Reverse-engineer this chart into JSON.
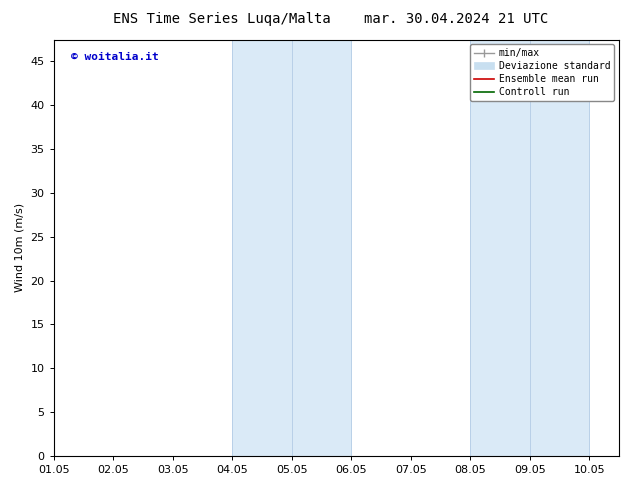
{
  "title": "ENS Time Series Luqa/Malta",
  "title_date": "mar. 30.04.2024 21 UTC",
  "ylabel": "Wind 10m (m/s)",
  "xlim_min": 0,
  "xlim_max": 9.5,
  "ylim_min": 0,
  "ylim_max": 47.5,
  "yticks": [
    0,
    5,
    10,
    15,
    20,
    25,
    30,
    35,
    40,
    45
  ],
  "xtick_labels": [
    "01.05",
    "02.05",
    "03.05",
    "04.05",
    "05.05",
    "06.05",
    "07.05",
    "08.05",
    "09.05",
    "10.05"
  ],
  "xtick_positions": [
    0,
    1,
    2,
    3,
    4,
    5,
    6,
    7,
    8,
    9
  ],
  "shaded_regions": [
    {
      "xmin": 3.0,
      "xmax": 4.0,
      "color": "#daeaf7"
    },
    {
      "xmin": 4.0,
      "xmax": 5.0,
      "color": "#daeaf7"
    },
    {
      "xmin": 7.0,
      "xmax": 8.0,
      "color": "#daeaf7"
    },
    {
      "xmin": 8.0,
      "xmax": 9.0,
      "color": "#daeaf7"
    }
  ],
  "shade_vlines": [
    3.0,
    4.0,
    5.0,
    7.0,
    8.0,
    9.0
  ],
  "background_color": "#ffffff",
  "plot_bg_color": "#ffffff",
  "watermark_text": "© woitalia.it",
  "watermark_color": "#0000cc",
  "legend_labels": [
    "min/max",
    "Deviazione standard",
    "Ensemble mean run",
    "Controll run"
  ],
  "legend_colors": [
    "#999999",
    "#c8dff0",
    "#cc0000",
    "#006600"
  ],
  "title_fontsize": 10,
  "axis_label_fontsize": 8,
  "tick_fontsize": 8,
  "legend_fontsize": 7
}
